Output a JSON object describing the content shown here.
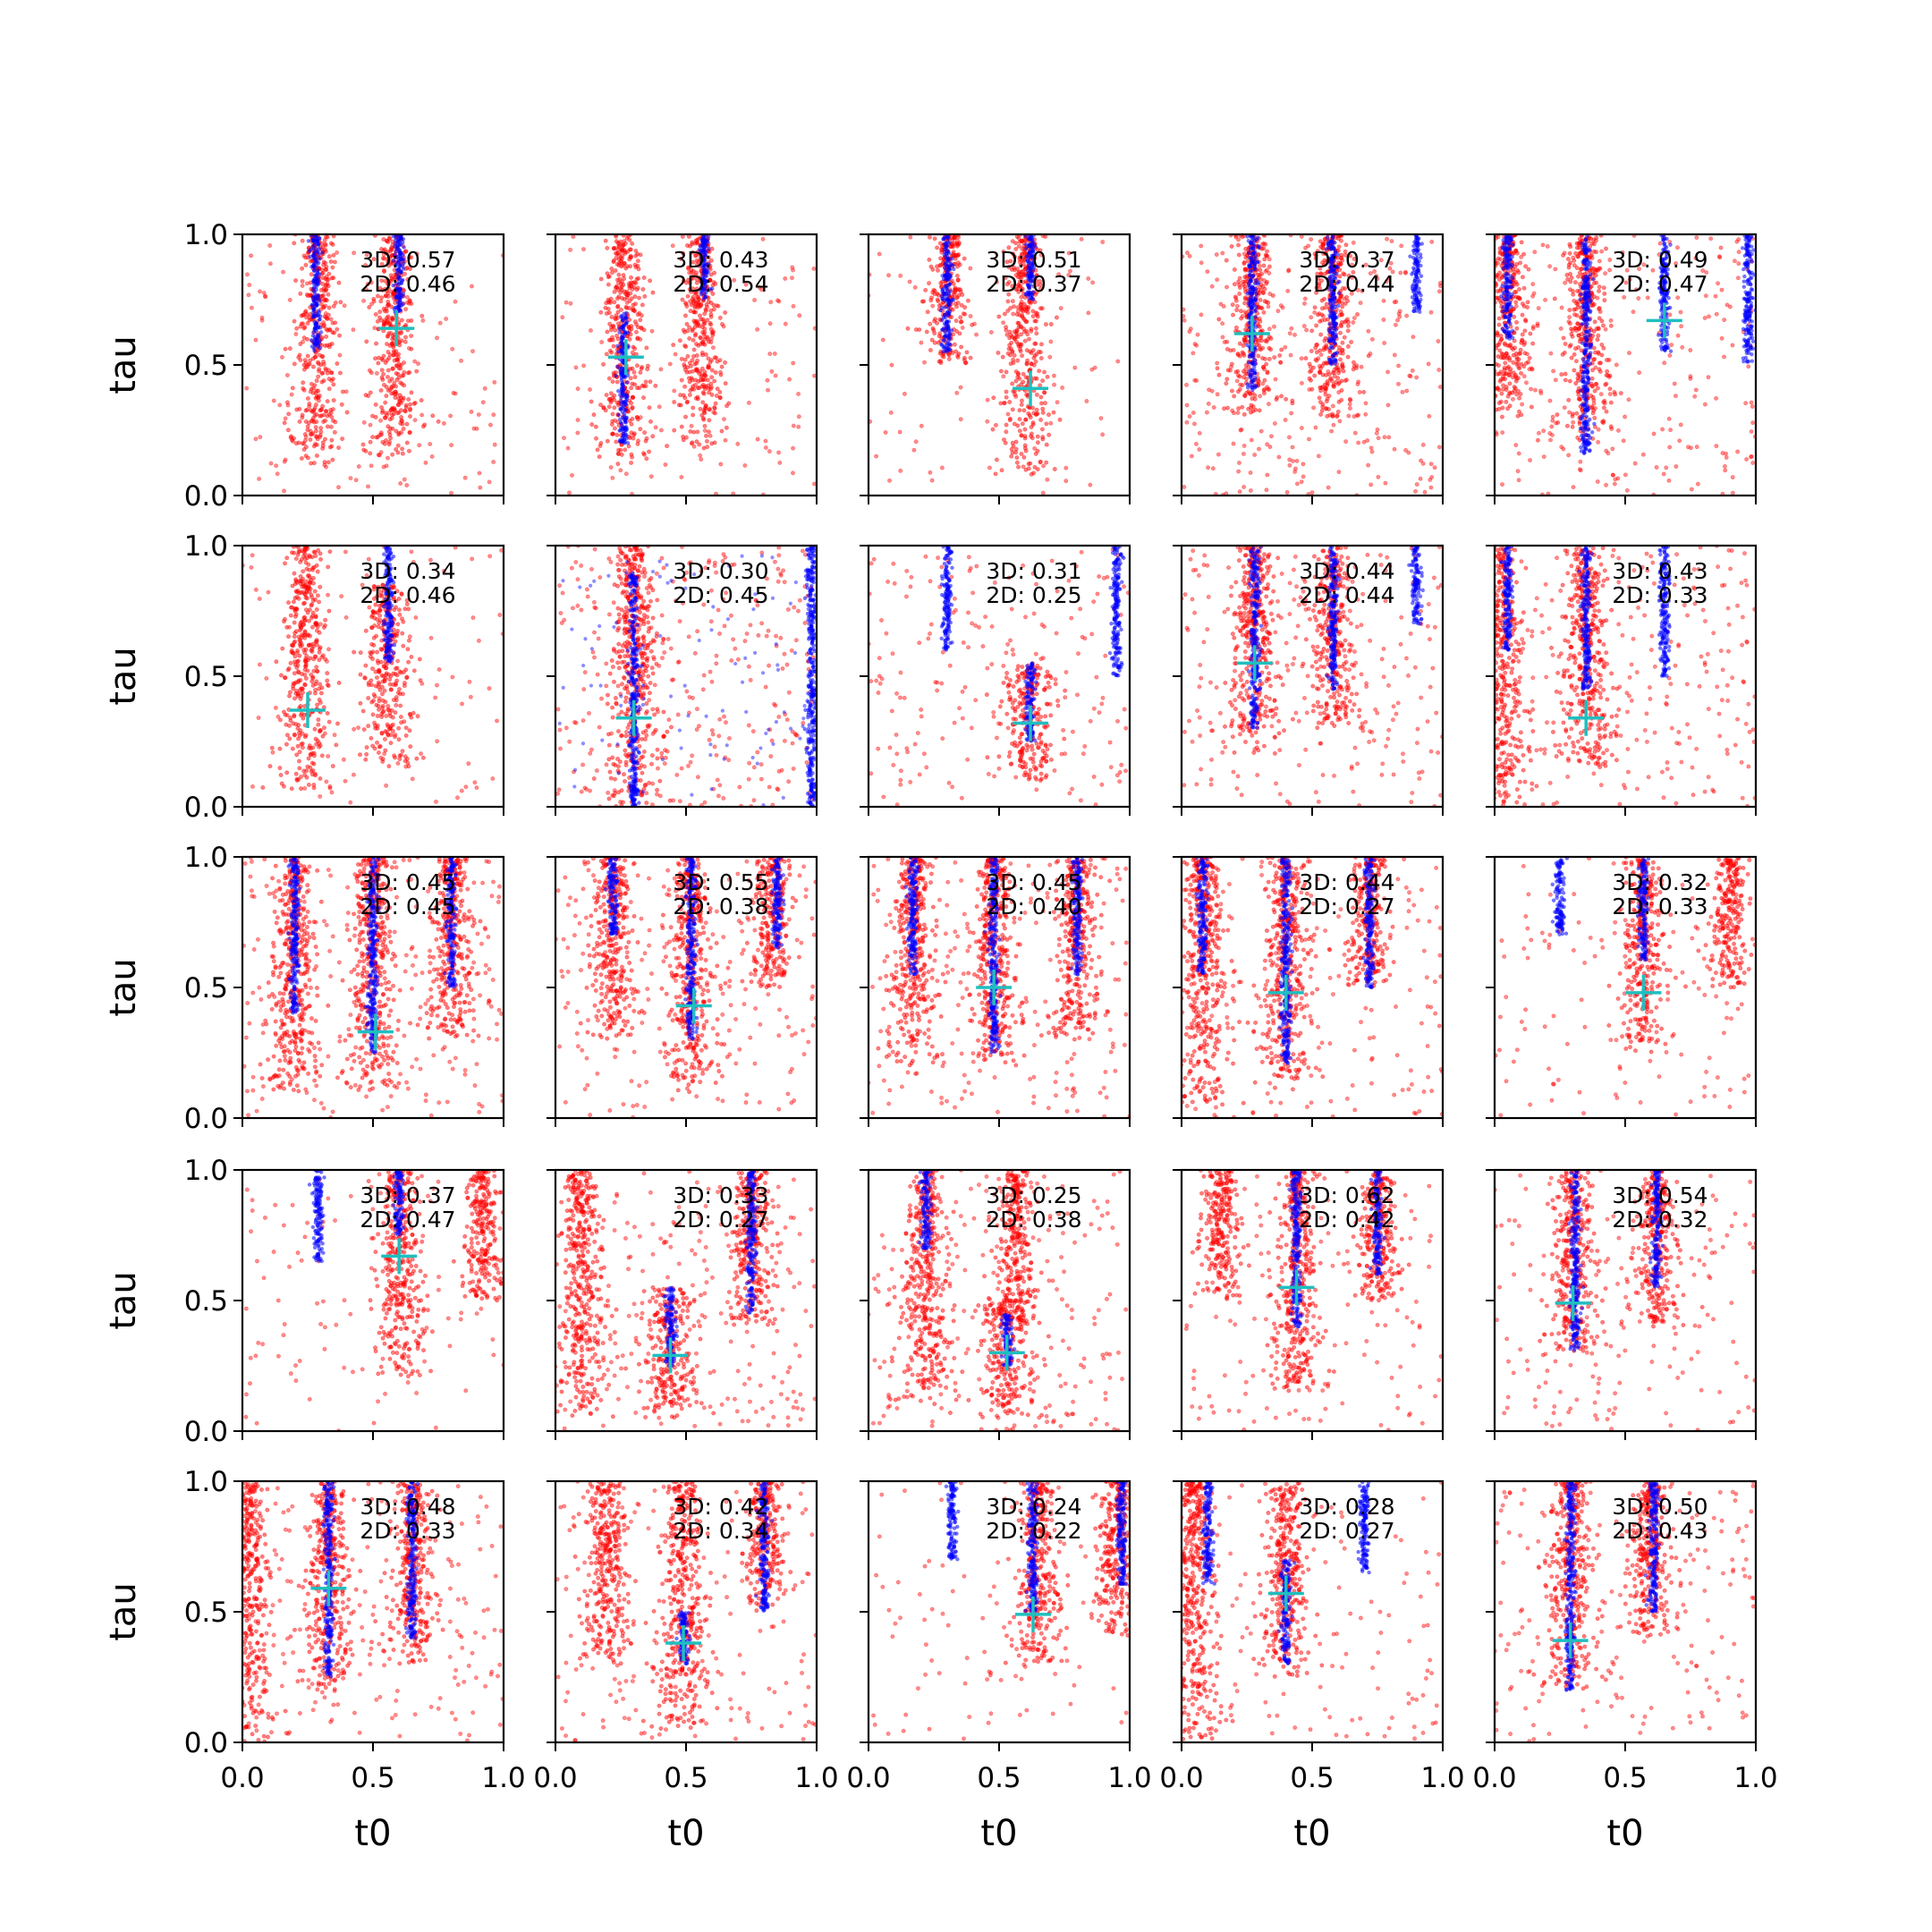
{
  "chart_data": {
    "type": "scatter",
    "layout": "5x5 grid of subplots",
    "xlabel": "t0",
    "ylabel": "tau",
    "xlim": [
      0,
      1
    ],
    "ylim": [
      0,
      1
    ],
    "xticks": [
      "0.0",
      "0.5",
      "1.0"
    ],
    "yticks": [
      "0.0",
      "0.5",
      "1.0"
    ],
    "grid": false,
    "colors": {
      "series_red": "#ff0000",
      "series_blue": "#0000ff",
      "marker": "#1fbfbf"
    },
    "panels": [
      {
        "row": 0,
        "col": 0,
        "annot3d": "3D: 0.57",
        "annot2d": "2D: 0.46",
        "marker": [
          0.59,
          0.64
        ],
        "red_bands": [
          [
            0.29,
            0.12,
            1.0
          ],
          [
            0.58,
            0.15,
            1.0
          ]
        ],
        "blue_bands": [
          [
            0.28,
            0.55,
            1.0
          ],
          [
            0.6,
            0.7,
            1.0
          ]
        ],
        "red_scatter": 0.55
      },
      {
        "row": 0,
        "col": 1,
        "annot3d": "3D: 0.43",
        "annot2d": "2D: 0.54",
        "marker": [
          0.27,
          0.53
        ],
        "red_bands": [
          [
            0.26,
            0.12,
            1.0
          ],
          [
            0.56,
            0.18,
            1.0
          ]
        ],
        "blue_bands": [
          [
            0.26,
            0.2,
            0.7
          ],
          [
            0.57,
            0.75,
            1.0
          ]
        ],
        "red_scatter": 0.45
      },
      {
        "row": 0,
        "col": 2,
        "annot3d": "3D: 0.51",
        "annot2d": "2D: 0.37",
        "marker": [
          0.62,
          0.41
        ],
        "red_bands": [
          [
            0.6,
            0.08,
            1.0
          ],
          [
            0.3,
            0.5,
            1.0
          ]
        ],
        "blue_bands": [
          [
            0.3,
            0.55,
            1.0
          ],
          [
            0.62,
            0.75,
            1.0
          ]
        ],
        "red_scatter": 0.35
      },
      {
        "row": 0,
        "col": 3,
        "annot3d": "3D: 0.37",
        "annot2d": "2D: 0.44",
        "marker": [
          0.27,
          0.62
        ],
        "red_bands": [
          [
            0.27,
            0.3,
            1.0
          ],
          [
            0.58,
            0.3,
            1.0
          ]
        ],
        "blue_bands": [
          [
            0.27,
            0.4,
            1.0
          ],
          [
            0.58,
            0.5,
            1.0
          ],
          [
            0.9,
            0.7,
            1.0
          ]
        ],
        "red_scatter": 1.2
      },
      {
        "row": 0,
        "col": 4,
        "annot3d": "3D: 0.49",
        "annot2d": "2D: 0.47",
        "marker": [
          0.65,
          0.67
        ],
        "red_bands": [
          [
            0.35,
            0.2,
            1.0
          ],
          [
            0.05,
            0.3,
            1.0
          ]
        ],
        "blue_bands": [
          [
            0.35,
            0.15,
            1.0
          ],
          [
            0.65,
            0.55,
            1.0
          ],
          [
            0.05,
            0.6,
            1.0
          ],
          [
            0.97,
            0.5,
            1.0
          ]
        ],
        "red_scatter": 1.0
      },
      {
        "row": 1,
        "col": 0,
        "annot3d": "3D: 0.34",
        "annot2d": "2D: 0.46",
        "marker": [
          0.25,
          0.37
        ],
        "red_bands": [
          [
            0.24,
            0.05,
            1.0
          ],
          [
            0.55,
            0.15,
            0.85
          ]
        ],
        "blue_bands": [
          [
            0.56,
            0.55,
            1.0
          ]
        ],
        "red_scatter": 0.35
      },
      {
        "row": 1,
        "col": 1,
        "annot3d": "3D: 0.30",
        "annot2d": "2D: 0.45",
        "marker": [
          0.3,
          0.34
        ],
        "red_bands": [
          [
            0.3,
            0.0,
            1.0
          ]
        ],
        "blue_bands": [
          [
            0.3,
            0.0,
            0.9
          ],
          [
            0.98,
            0.0,
            1.0
          ]
        ],
        "red_scatter": 1.2,
        "blue_scatter": 0.5
      },
      {
        "row": 1,
        "col": 2,
        "annot3d": "3D: 0.31",
        "annot2d": "2D: 0.25",
        "marker": [
          0.62,
          0.32
        ],
        "red_bands": [
          [
            0.62,
            0.1,
            0.55
          ]
        ],
        "blue_bands": [
          [
            0.3,
            0.6,
            1.0
          ],
          [
            0.62,
            0.25,
            0.55
          ],
          [
            0.95,
            0.5,
            1.0
          ]
        ],
        "red_scatter": 0.75
      },
      {
        "row": 1,
        "col": 3,
        "annot3d": "3D: 0.44",
        "annot2d": "2D: 0.44",
        "marker": [
          0.28,
          0.55
        ],
        "red_bands": [
          [
            0.28,
            0.2,
            1.0
          ],
          [
            0.58,
            0.3,
            1.0
          ]
        ],
        "blue_bands": [
          [
            0.28,
            0.3,
            1.0
          ],
          [
            0.58,
            0.45,
            1.0
          ],
          [
            0.9,
            0.7,
            1.0
          ]
        ],
        "red_scatter": 0.9
      },
      {
        "row": 1,
        "col": 4,
        "annot3d": "3D: 0.43",
        "annot2d": "2D: 0.33",
        "marker": [
          0.35,
          0.34
        ],
        "red_bands": [
          [
            0.35,
            0.15,
            1.0
          ],
          [
            0.03,
            0.0,
            1.0
          ]
        ],
        "blue_bands": [
          [
            0.35,
            0.45,
            1.0
          ],
          [
            0.65,
            0.5,
            1.0
          ],
          [
            0.05,
            0.6,
            1.0
          ]
        ],
        "red_scatter": 0.9
      },
      {
        "row": 2,
        "col": 0,
        "annot3d": "3D: 0.45",
        "annot2d": "2D: 0.45",
        "marker": [
          0.51,
          0.33
        ],
        "red_bands": [
          [
            0.2,
            0.1,
            1.0
          ],
          [
            0.5,
            0.1,
            1.0
          ],
          [
            0.8,
            0.3,
            1.0
          ]
        ],
        "blue_bands": [
          [
            0.2,
            0.4,
            1.0
          ],
          [
            0.5,
            0.25,
            1.0
          ],
          [
            0.8,
            0.5,
            1.0
          ]
        ],
        "red_scatter": 1.0
      },
      {
        "row": 2,
        "col": 1,
        "annot3d": "3D: 0.55",
        "annot2d": "2D: 0.38",
        "marker": [
          0.53,
          0.43
        ],
        "red_bands": [
          [
            0.22,
            0.3,
            1.0
          ],
          [
            0.52,
            0.1,
            1.0
          ],
          [
            0.83,
            0.5,
            1.0
          ]
        ],
        "blue_bands": [
          [
            0.22,
            0.7,
            1.0
          ],
          [
            0.52,
            0.3,
            1.0
          ],
          [
            0.85,
            0.65,
            1.0
          ]
        ],
        "red_scatter": 0.9
      },
      {
        "row": 2,
        "col": 2,
        "annot3d": "3D: 0.45",
        "annot2d": "2D: 0.40",
        "marker": [
          0.48,
          0.5
        ],
        "red_bands": [
          [
            0.17,
            0.2,
            1.0
          ],
          [
            0.48,
            0.2,
            1.0
          ],
          [
            0.8,
            0.3,
            1.0
          ]
        ],
        "blue_bands": [
          [
            0.17,
            0.55,
            1.0
          ],
          [
            0.48,
            0.25,
            1.0
          ],
          [
            0.8,
            0.55,
            1.0
          ]
        ],
        "red_scatter": 0.9
      },
      {
        "row": 2,
        "col": 3,
        "annot3d": "3D: 0.44",
        "annot2d": "2D: 0.27",
        "marker": [
          0.4,
          0.48
        ],
        "red_bands": [
          [
            0.08,
            0.05,
            1.0
          ],
          [
            0.4,
            0.1,
            1.0
          ],
          [
            0.72,
            0.5,
            1.0
          ]
        ],
        "blue_bands": [
          [
            0.08,
            0.55,
            1.0
          ],
          [
            0.4,
            0.2,
            1.0
          ],
          [
            0.72,
            0.5,
            1.0
          ]
        ],
        "red_scatter": 0.8
      },
      {
        "row": 2,
        "col": 4,
        "annot3d": "3D: 0.32",
        "annot2d": "2D: 0.33",
        "marker": [
          0.57,
          0.48
        ],
        "red_bands": [
          [
            0.57,
            0.25,
            1.0
          ],
          [
            0.9,
            0.5,
            1.0
          ]
        ],
        "blue_bands": [
          [
            0.25,
            0.7,
            1.0
          ],
          [
            0.57,
            0.6,
            1.0
          ]
        ],
        "red_scatter": 0.45
      },
      {
        "row": 3,
        "col": 0,
        "annot3d": "3D: 0.37",
        "annot2d": "2D: 0.47",
        "marker": [
          0.6,
          0.67
        ],
        "red_bands": [
          [
            0.6,
            0.2,
            1.0
          ],
          [
            0.92,
            0.5,
            1.0
          ]
        ],
        "blue_bands": [
          [
            0.29,
            0.65,
            1.0
          ],
          [
            0.6,
            0.75,
            1.0
          ]
        ],
        "red_scatter": 0.4
      },
      {
        "row": 3,
        "col": 1,
        "annot3d": "3D: 0.33",
        "annot2d": "2D: 0.27",
        "marker": [
          0.44,
          0.29
        ],
        "red_bands": [
          [
            0.1,
            0.05,
            1.0
          ],
          [
            0.44,
            0.05,
            0.55
          ],
          [
            0.75,
            0.4,
            1.0
          ]
        ],
        "blue_bands": [
          [
            0.44,
            0.25,
            0.55
          ],
          [
            0.75,
            0.45,
            1.0
          ]
        ],
        "red_scatter": 0.9
      },
      {
        "row": 3,
        "col": 2,
        "annot3d": "3D: 0.25",
        "annot2d": "2D: 0.38",
        "marker": [
          0.53,
          0.3
        ],
        "red_bands": [
          [
            0.22,
            0.1,
            1.0
          ],
          [
            0.53,
            0.05,
            0.5
          ],
          [
            0.57,
            0.4,
            1.0
          ]
        ],
        "blue_bands": [
          [
            0.22,
            0.7,
            1.0
          ],
          [
            0.53,
            0.25,
            0.45
          ]
        ],
        "red_scatter": 0.9
      },
      {
        "row": 3,
        "col": 3,
        "annot3d": "3D: 0.62",
        "annot2d": "2D: 0.42",
        "marker": [
          0.44,
          0.55
        ],
        "red_bands": [
          [
            0.15,
            0.5,
            1.0
          ],
          [
            0.44,
            0.15,
            1.0
          ],
          [
            0.75,
            0.5,
            1.0
          ]
        ],
        "blue_bands": [
          [
            0.44,
            0.4,
            1.0
          ],
          [
            0.75,
            0.6,
            1.0
          ]
        ],
        "red_scatter": 0.6
      },
      {
        "row": 3,
        "col": 4,
        "annot3d": "3D: 0.54",
        "annot2d": "2D: 0.32",
        "marker": [
          0.3,
          0.49
        ],
        "red_bands": [
          [
            0.3,
            0.3,
            1.0
          ],
          [
            0.62,
            0.4,
            1.0
          ]
        ],
        "blue_bands": [
          [
            0.31,
            0.3,
            1.0
          ],
          [
            0.62,
            0.55,
            1.0
          ]
        ],
        "red_scatter": 0.7
      },
      {
        "row": 4,
        "col": 0,
        "annot3d": "3D: 0.48",
        "annot2d": "2D: 0.33",
        "marker": [
          0.33,
          0.59
        ],
        "red_bands": [
          [
            0.02,
            0.0,
            1.0
          ],
          [
            0.33,
            0.2,
            1.0
          ],
          [
            0.65,
            0.3,
            1.0
          ]
        ],
        "blue_bands": [
          [
            0.33,
            0.25,
            1.0
          ],
          [
            0.65,
            0.4,
            1.0
          ]
        ],
        "red_scatter": 0.8
      },
      {
        "row": 4,
        "col": 1,
        "annot3d": "3D: 0.42",
        "annot2d": "2D: 0.34",
        "marker": [
          0.49,
          0.38
        ],
        "red_bands": [
          [
            0.2,
            0.3,
            1.0
          ],
          [
            0.49,
            0.05,
            1.0
          ],
          [
            0.8,
            0.5,
            1.0
          ]
        ],
        "blue_bands": [
          [
            0.49,
            0.3,
            0.5
          ],
          [
            0.8,
            0.5,
            1.0
          ]
        ],
        "red_scatter": 0.7
      },
      {
        "row": 4,
        "col": 2,
        "annot3d": "3D: 0.24",
        "annot2d": "2D: 0.22",
        "marker": [
          0.63,
          0.49
        ],
        "red_bands": [
          [
            0.65,
            0.3,
            1.0
          ],
          [
            0.95,
            0.4,
            1.0
          ]
        ],
        "blue_bands": [
          [
            0.32,
            0.7,
            1.0
          ],
          [
            0.63,
            0.5,
            1.0
          ],
          [
            0.97,
            0.6,
            1.0
          ]
        ],
        "red_scatter": 0.4
      },
      {
        "row": 4,
        "col": 3,
        "annot3d": "3D: 0.28",
        "annot2d": "2D: 0.27",
        "marker": [
          0.4,
          0.57
        ],
        "red_bands": [
          [
            0.05,
            0.0,
            1.0
          ],
          [
            0.4,
            0.25,
            1.0
          ]
        ],
        "blue_bands": [
          [
            0.1,
            0.6,
            1.0
          ],
          [
            0.4,
            0.3,
            0.7
          ],
          [
            0.7,
            0.65,
            1.0
          ]
        ],
        "red_scatter": 0.5
      },
      {
        "row": 4,
        "col": 4,
        "annot3d": "3D: 0.50",
        "annot2d": "2D: 0.43",
        "marker": [
          0.29,
          0.39
        ],
        "red_bands": [
          [
            0.29,
            0.2,
            1.0
          ],
          [
            0.6,
            0.4,
            1.0
          ]
        ],
        "blue_bands": [
          [
            0.29,
            0.2,
            1.0
          ],
          [
            0.61,
            0.5,
            1.0
          ]
        ],
        "red_scatter": 0.8
      }
    ]
  }
}
